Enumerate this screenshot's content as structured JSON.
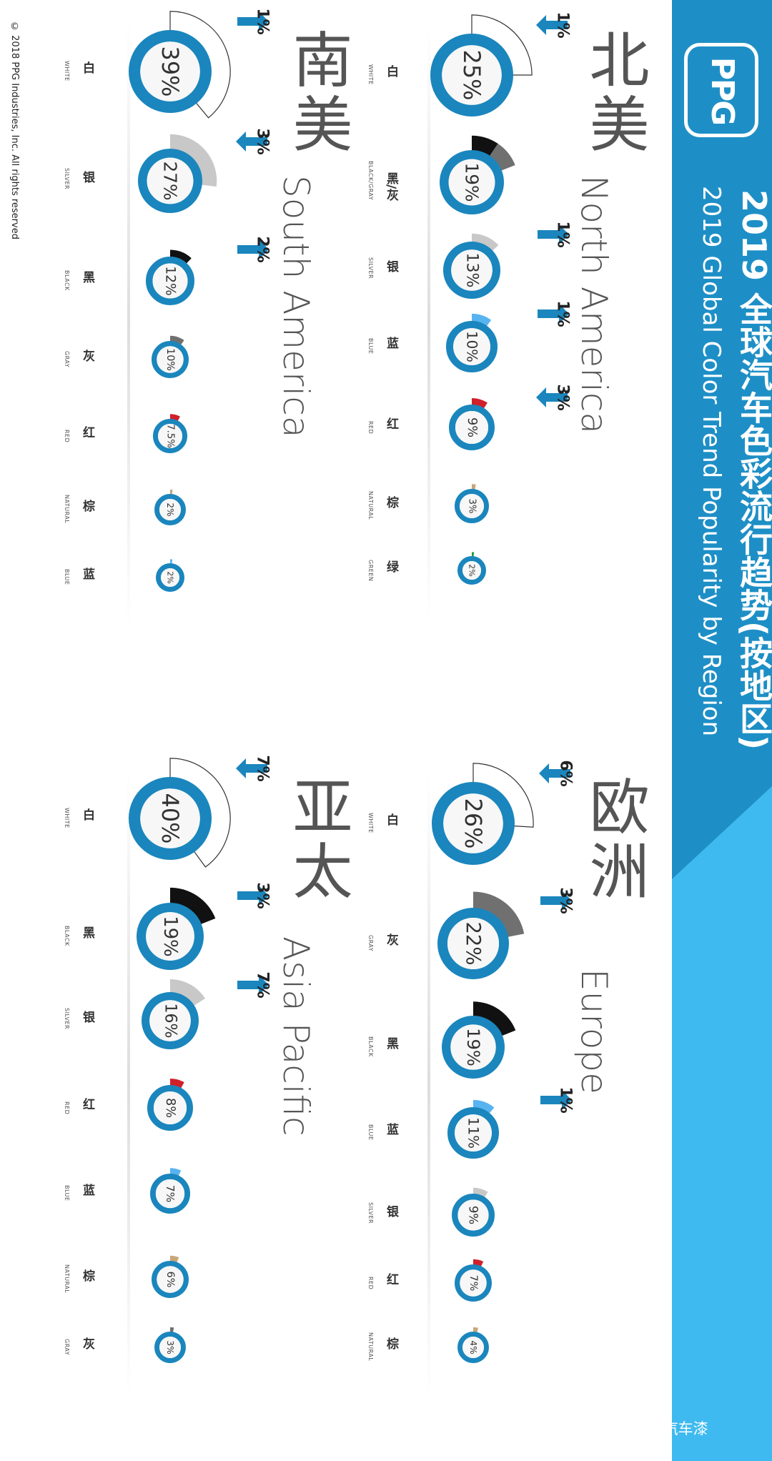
{
  "title": {
    "cn": "2019 全球汽车色彩流行趋势(按地区)",
    "en": "2019 Global Color Trend Popularity by Region"
  },
  "logo": "PPG",
  "copyright": "© 2018 PPG Industries, Inc. All rights reserved",
  "watermark": "PPG专业汽车漆",
  "colors": {
    "ring": "#1a86bd",
    "banner": "#1e8fc6",
    "banner_light": "#3fbaf0",
    "white": "#ffffff",
    "black": "#111111",
    "gray": "#707070",
    "silver": "#c8c8c8",
    "blue": "#58b4f0",
    "red": "#d0202a",
    "natural": "#c8a67a",
    "green": "#1e9a3a"
  },
  "chart_data": [
    {
      "type": "pie",
      "region_cn": "北美",
      "region_en": "North America",
      "categories": [
        {
          "cn": "白",
          "en": "WHITE",
          "value": 25,
          "label": "25%",
          "color": "white",
          "trend": "1%",
          "trend_dir": "down"
        },
        {
          "cn": "黑/灰",
          "en": "BLACK/GRAY",
          "value": 19,
          "label": "19%",
          "color": "black_gray",
          "trend": "",
          "trend_dir": ""
        },
        {
          "cn": "银",
          "en": "SILVER",
          "value": 13,
          "label": "13%",
          "color": "silver",
          "trend": "1%",
          "trend_dir": "up"
        },
        {
          "cn": "蓝",
          "en": "BLUE",
          "value": 10,
          "label": "10%",
          "color": "blue",
          "trend": "1%",
          "trend_dir": "up"
        },
        {
          "cn": "红",
          "en": "RED",
          "value": 9,
          "label": "9%",
          "color": "red",
          "trend": "3%",
          "trend_dir": "down"
        },
        {
          "cn": "棕",
          "en": "NATURAL",
          "value": 3,
          "label": "3%",
          "color": "natural",
          "trend": "",
          "trend_dir": ""
        },
        {
          "cn": "绿",
          "en": "GREEN",
          "value": 2,
          "label": "2%",
          "color": "green",
          "trend": "",
          "trend_dir": ""
        }
      ]
    },
    {
      "type": "pie",
      "region_cn": "南美",
      "region_en": "South America",
      "categories": [
        {
          "cn": "白",
          "en": "WHITE",
          "value": 39,
          "label": "39%",
          "color": "white",
          "trend": "1%",
          "trend_dir": "up"
        },
        {
          "cn": "银",
          "en": "SILVER",
          "value": 27,
          "label": "27%",
          "color": "silver",
          "trend": "3%",
          "trend_dir": "down"
        },
        {
          "cn": "黑",
          "en": "BLACK",
          "value": 12,
          "label": "12%",
          "color": "black",
          "trend": "2%",
          "trend_dir": "up"
        },
        {
          "cn": "灰",
          "en": "GRAY",
          "value": 10,
          "label": "10%",
          "color": "gray",
          "trend": "",
          "trend_dir": ""
        },
        {
          "cn": "红",
          "en": "RED",
          "value": 7.5,
          "label": "7.5%",
          "color": "red",
          "trend": "",
          "trend_dir": ""
        },
        {
          "cn": "棕",
          "en": "NATURAL",
          "value": 2,
          "label": "2%",
          "color": "natural",
          "trend": "",
          "trend_dir": ""
        },
        {
          "cn": "蓝",
          "en": "BLUE",
          "value": 2,
          "label": "2%",
          "color": "blue",
          "trend": "",
          "trend_dir": ""
        }
      ]
    },
    {
      "type": "pie",
      "region_cn": "欧洲",
      "region_en": "Europe",
      "categories": [
        {
          "cn": "白",
          "en": "WHITE",
          "value": 26,
          "label": "26%",
          "color": "white",
          "trend": "6%",
          "trend_dir": "down"
        },
        {
          "cn": "灰",
          "en": "GRAY",
          "value": 22,
          "label": "22%",
          "color": "gray",
          "trend": "3%",
          "trend_dir": "up"
        },
        {
          "cn": "黑",
          "en": "BLACK",
          "value": 19,
          "label": "19%",
          "color": "black",
          "trend": "",
          "trend_dir": ""
        },
        {
          "cn": "蓝",
          "en": "BLUE",
          "value": 11,
          "label": "11%",
          "color": "blue",
          "trend": "1%",
          "trend_dir": "up"
        },
        {
          "cn": "银",
          "en": "SILVER",
          "value": 9,
          "label": "9%",
          "color": "silver",
          "trend": "",
          "trend_dir": ""
        },
        {
          "cn": "红",
          "en": "RED",
          "value": 7,
          "label": "7%",
          "color": "red",
          "trend": "",
          "trend_dir": ""
        },
        {
          "cn": "棕",
          "en": "NATURAL",
          "value": 4,
          "label": "4%",
          "color": "natural",
          "trend": "",
          "trend_dir": ""
        }
      ]
    },
    {
      "type": "pie",
      "region_cn": "亚太",
      "region_en": "Asia Pacific",
      "categories": [
        {
          "cn": "白",
          "en": "WHITE",
          "value": 40,
          "label": "40%",
          "color": "white",
          "trend": "7%",
          "trend_dir": "down"
        },
        {
          "cn": "黑",
          "en": "BLACK",
          "value": 19,
          "label": "19%",
          "color": "black",
          "trend": "3%",
          "trend_dir": "up"
        },
        {
          "cn": "银",
          "en": "SILVER",
          "value": 16,
          "label": "16%",
          "color": "silver",
          "trend": "7%",
          "trend_dir": "up"
        },
        {
          "cn": "红",
          "en": "RED",
          "value": 8,
          "label": "8%",
          "color": "red",
          "trend": "",
          "trend_dir": ""
        },
        {
          "cn": "蓝",
          "en": "BLUE",
          "value": 7,
          "label": "7%",
          "color": "blue",
          "trend": "",
          "trend_dir": ""
        },
        {
          "cn": "棕",
          "en": "NATURAL",
          "value": 6,
          "label": "6%",
          "color": "natural",
          "trend": "",
          "trend_dir": ""
        },
        {
          "cn": "灰",
          "en": "GRAY",
          "value": 3,
          "label": "3%",
          "color": "gray",
          "trend": "",
          "trend_dir": ""
        }
      ]
    }
  ]
}
